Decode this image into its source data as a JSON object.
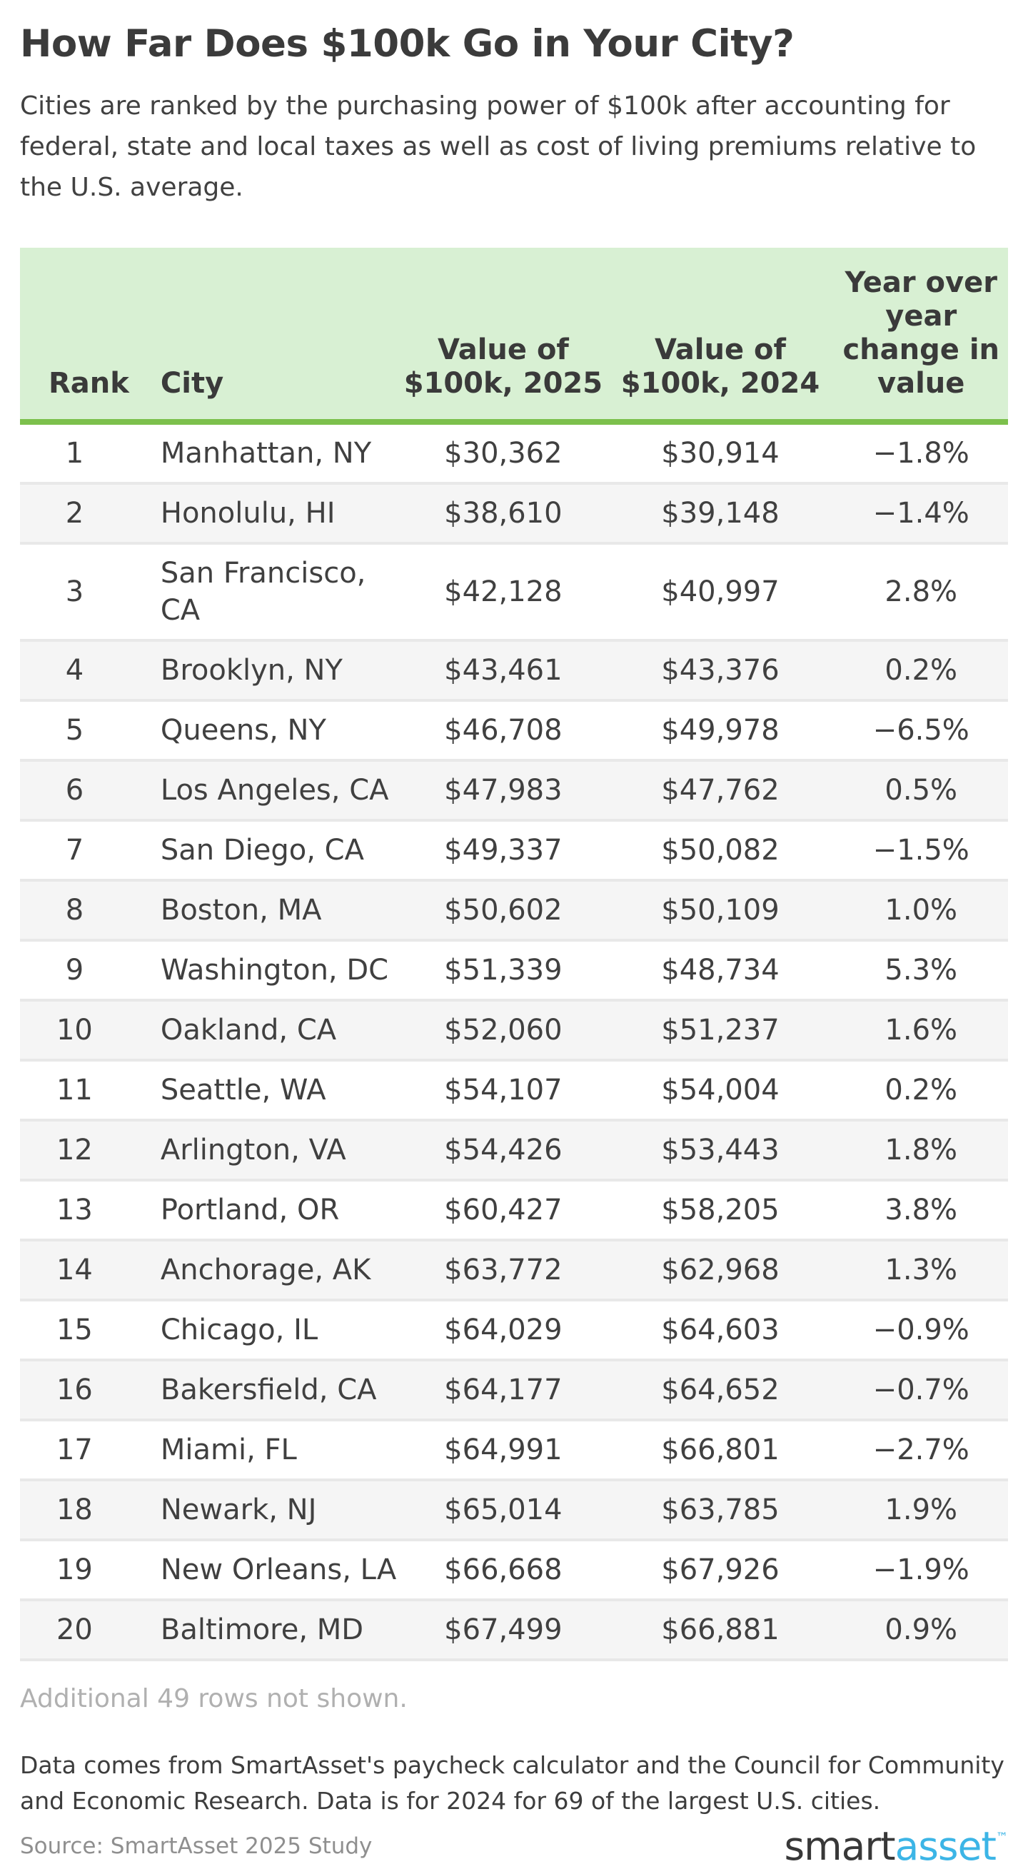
{
  "header": {
    "title": "How Far Does $100k Go in Your City?",
    "subtitle": "Cities are ranked by the purchasing power of $100k after accounting for federal, state and local taxes as well as cost of living premiums relative to the U.S. average."
  },
  "chart_data": {
    "type": "table",
    "title": "How Far Does $100k Go in Your City?",
    "columns": [
      "Rank",
      "City",
      "Value of $100k, 2025",
      "Value of $100k, 2024",
      "Year over year change in value"
    ],
    "rows": [
      [
        "1",
        "Manhattan, NY",
        "$30,362",
        "$30,914",
        "−1.8%"
      ],
      [
        "2",
        "Honolulu, HI",
        "$38,610",
        "$39,148",
        "−1.4%"
      ],
      [
        "3",
        "San Francisco, CA",
        "$42,128",
        "$40,997",
        "2.8%"
      ],
      [
        "4",
        "Brooklyn, NY",
        "$43,461",
        "$43,376",
        "0.2%"
      ],
      [
        "5",
        "Queens, NY",
        "$46,708",
        "$49,978",
        "−6.5%"
      ],
      [
        "6",
        "Los Angeles, CA",
        "$47,983",
        "$47,762",
        "0.5%"
      ],
      [
        "7",
        "San Diego, CA",
        "$49,337",
        "$50,082",
        "−1.5%"
      ],
      [
        "8",
        "Boston, MA",
        "$50,602",
        "$50,109",
        "1.0%"
      ],
      [
        "9",
        "Washington, DC",
        "$51,339",
        "$48,734",
        "5.3%"
      ],
      [
        "10",
        "Oakland, CA",
        "$52,060",
        "$51,237",
        "1.6%"
      ],
      [
        "11",
        "Seattle, WA",
        "$54,107",
        "$54,004",
        "0.2%"
      ],
      [
        "12",
        "Arlington, VA",
        "$54,426",
        "$53,443",
        "1.8%"
      ],
      [
        "13",
        "Portland, OR",
        "$60,427",
        "$58,205",
        "3.8%"
      ],
      [
        "14",
        "Anchorage, AK",
        "$63,772",
        "$62,968",
        "1.3%"
      ],
      [
        "15",
        "Chicago, IL",
        "$64,029",
        "$64,603",
        "−0.9%"
      ],
      [
        "16",
        "Bakersfield, CA",
        "$64,177",
        "$64,652",
        "−0.7%"
      ],
      [
        "17",
        "Miami, FL",
        "$64,991",
        "$66,801",
        "−2.7%"
      ],
      [
        "18",
        "Newark, NJ",
        "$65,014",
        "$63,785",
        "1.9%"
      ],
      [
        "19",
        "New Orleans, LA",
        "$66,668",
        "$67,926",
        "−1.9%"
      ],
      [
        "20",
        "Baltimore, MD",
        "$67,499",
        "$66,881",
        "0.9%"
      ]
    ]
  },
  "notes": {
    "additional_rows": "Additional 49 rows not shown.",
    "methodology": "Data comes from SmartAsset's paycheck calculator and the Council for Community and Economic Research. Data is for 2024 for 69 of the largest U.S. cities.",
    "source": "Source: SmartAsset 2025 Study"
  },
  "branding": {
    "logo_part_dark": "smart",
    "logo_part_blue": "asset",
    "trademark": "™"
  },
  "colors": {
    "text": "#404040",
    "header-bg": "#d8f0d3",
    "header-border": "#7cc04c",
    "row-alt": "#f5f5f5",
    "row-line": "#e8e8e8",
    "muted": "#b0b0b0",
    "source-text": "#8f8f8f",
    "logo-dark": "#383838",
    "logo-blue": "#3cb5e6"
  }
}
